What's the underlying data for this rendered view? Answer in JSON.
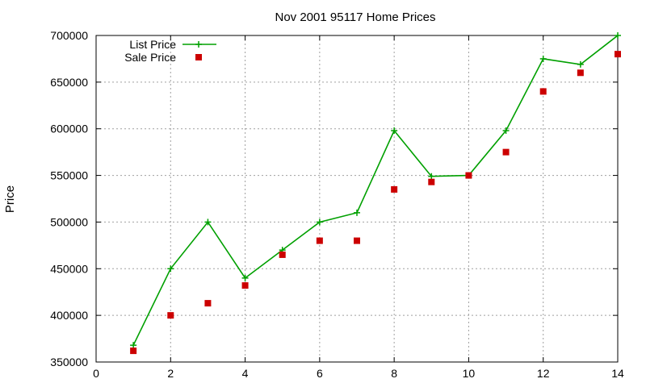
{
  "chart_data": {
    "type": "line",
    "title": "Nov 2001 95117 Home Prices",
    "xlabel": "",
    "ylabel": "Price",
    "xlim": [
      0,
      14
    ],
    "ylim": [
      350000,
      700000
    ],
    "x_ticks": [
      0,
      2,
      4,
      6,
      8,
      10,
      12,
      14
    ],
    "y_ticks": [
      350000,
      400000,
      450000,
      500000,
      550000,
      600000,
      650000,
      700000
    ],
    "grid": true,
    "legend_position": "top-left",
    "series": [
      {
        "name": "List Price",
        "style": "linespoints",
        "marker": "plus",
        "color": "#00a000",
        "x": [
          1,
          2,
          3,
          4,
          5,
          6,
          7,
          8,
          9,
          10,
          11,
          12,
          13,
          14
        ],
        "y": [
          368000,
          450000,
          500000,
          440000,
          470000,
          500000,
          510000,
          598000,
          549000,
          550000,
          598000,
          675000,
          669000,
          700000
        ]
      },
      {
        "name": "Sale Price",
        "style": "points",
        "marker": "square",
        "color": "#cc0000",
        "x": [
          1,
          2,
          3,
          4,
          5,
          6,
          7,
          8,
          9,
          10,
          11,
          12,
          13,
          14
        ],
        "y": [
          362000,
          400000,
          413000,
          432000,
          465000,
          480000,
          480000,
          535000,
          543000,
          550000,
          575000,
          640000,
          660000,
          680000
        ]
      }
    ]
  }
}
